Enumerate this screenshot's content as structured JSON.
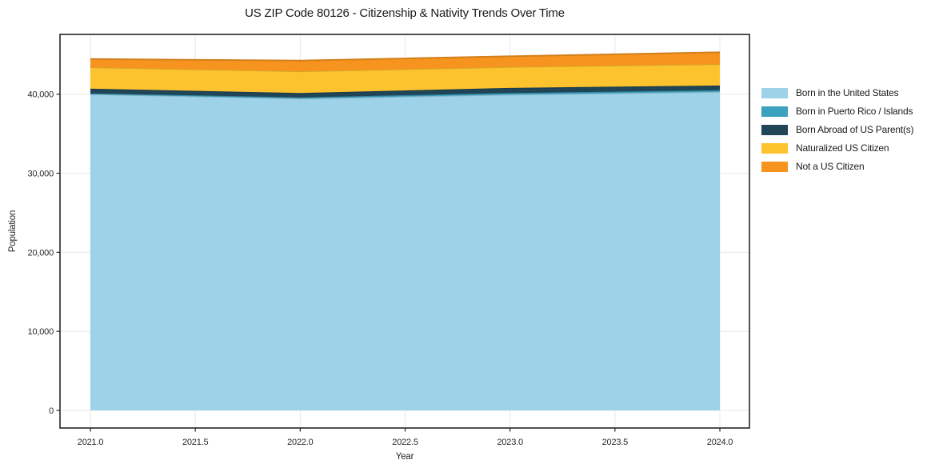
{
  "title": "US ZIP Code 80126 - Citizenship & Nativity Trends Over Time",
  "chart_data": {
    "type": "area",
    "stacked": true,
    "title": "US ZIP Code 80126 - Citizenship & Nativity Trends Over Time",
    "xlabel": "Year",
    "ylabel": "Population",
    "x": [
      2021,
      2022,
      2023,
      2024
    ],
    "series": [
      {
        "name": "Born in the United States",
        "values": [
          40000,
          39450,
          39950,
          40300
        ],
        "color": "#9dd2e8"
      },
      {
        "name": "Born in Puerto Rico / Islands",
        "values": [
          100,
          150,
          200,
          200
        ],
        "color": "#3ca0bf"
      },
      {
        "name": "Born Abroad of US Parent(s)",
        "values": [
          600,
          550,
          650,
          600
        ],
        "color": "#1f4557"
      },
      {
        "name": "Naturalized US Citizen",
        "values": [
          2700,
          2750,
          2650,
          2700
        ],
        "color": "#fdc32f"
      },
      {
        "name": "Not a US Citizen",
        "values": [
          1050,
          1350,
          1350,
          1500
        ],
        "color": "#f7941f"
      }
    ],
    "x_ticks": [
      "2021.0",
      "2021.5",
      "2022.0",
      "2022.5",
      "2023.0",
      "2023.5",
      "2024.0"
    ],
    "x_tick_values": [
      2021.0,
      2021.5,
      2022.0,
      2022.5,
      2023.0,
      2023.5,
      2024.0
    ],
    "y_ticks": [
      "0",
      "10,000",
      "20,000",
      "30,000",
      "40,000"
    ],
    "y_tick_values": [
      0,
      10000,
      20000,
      30000,
      40000
    ],
    "xlim": [
      2020.855,
      2024.141
    ],
    "ylim": [
      -2226,
      47564
    ],
    "grid": true,
    "legend_position": "right",
    "grid_color": "#e8e8e8",
    "spine_color": "#262626",
    "tick_color": "#262626"
  }
}
